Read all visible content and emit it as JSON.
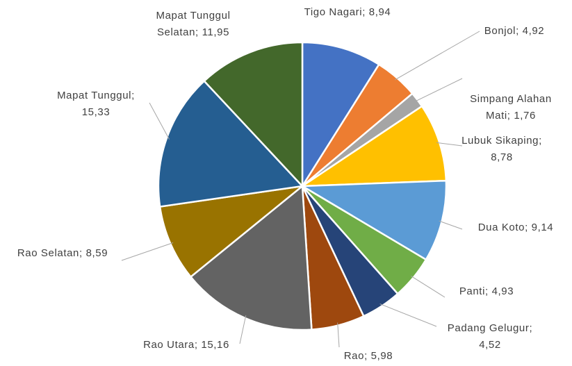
{
  "chart_data": {
    "type": "pie",
    "categories": [
      "Tigo Nagari",
      "Bonjol",
      "Simpang Alahan Mati",
      "Lubuk Sikaping",
      "Dua Koto",
      "Panti",
      "Padang Gelugur",
      "Rao",
      "Rao Utara",
      "Rao Selatan",
      "Mapat Tunggul",
      "Mapat Tunggul Selatan"
    ],
    "values": [
      8.94,
      4.92,
      1.76,
      8.78,
      9.14,
      4.93,
      4.52,
      5.98,
      15.16,
      8.59,
      15.33,
      11.95
    ],
    "value_labels": [
      "8,94",
      "4,92",
      "1,76",
      "8,78",
      "9,14",
      "4,93",
      "4,52",
      "5,98",
      "15,16",
      "8,59",
      "15,33",
      "11,95"
    ],
    "label_separator": ";",
    "colors": [
      "#4472c4",
      "#ed7d31",
      "#a5a5a5",
      "#ffc000",
      "#5b9bd5",
      "#70ad47",
      "#264478",
      "#9e480e",
      "#636363",
      "#997300",
      "#255e91",
      "#43682b"
    ]
  }
}
